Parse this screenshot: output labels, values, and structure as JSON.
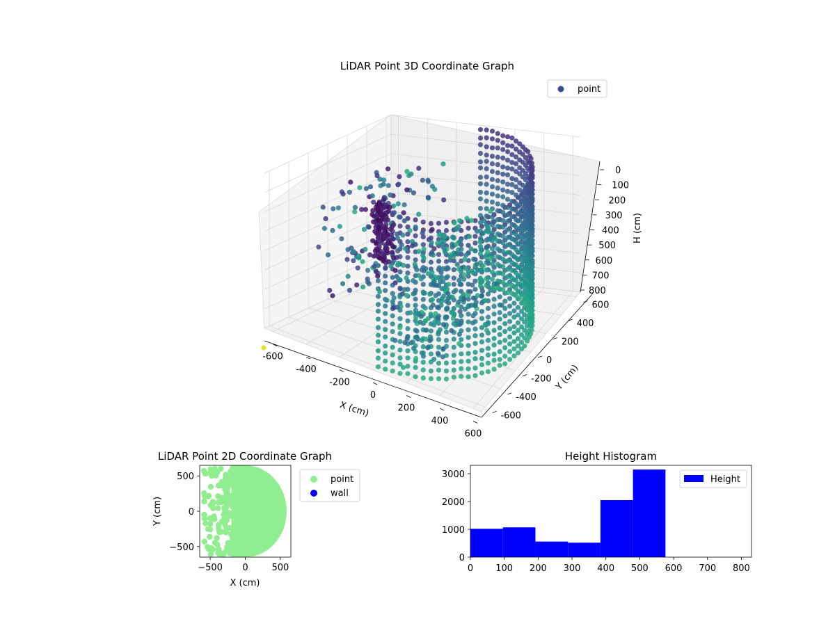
{
  "colors": {
    "legend_point_3d": "#3b4d8b",
    "point_2d": "#90ee90",
    "wall_2d": "#0000ff",
    "histogram_bar": "#0000ff",
    "colormap": "viridis"
  },
  "chart_data": [
    {
      "type": "scatter",
      "projection": "3d",
      "title": "LiDAR Point 3D Coordinate Graph",
      "xlabel": "X (cm)",
      "ylabel": "Y (cm)",
      "zlabel": "H (cm)",
      "xlim": [
        -650,
        650
      ],
      "ylim": [
        -650,
        650
      ],
      "zlim": [
        0,
        800
      ],
      "z_inverted": true,
      "x_ticks": [
        -600,
        -400,
        -200,
        0,
        200,
        400,
        600
      ],
      "y_ticks": [
        -600,
        -400,
        -200,
        0,
        200,
        400,
        600
      ],
      "z_ticks": [
        0,
        100,
        200,
        300,
        400,
        500,
        600,
        700,
        800
      ],
      "grid": true,
      "legend": {
        "entries": [
          "point"
        ],
        "placement": "top-right"
      },
      "series": [
        {
          "name": "point",
          "description": "half-ring of points radius ~600 cm, heights 0-800 cm, colored by viridis"
        }
      ]
    },
    {
      "type": "scatter",
      "title": "LiDAR Point 2D Coordinate Graph",
      "xlabel": "X (cm)",
      "ylabel": "Y (cm)",
      "xlim": [
        -650,
        650
      ],
      "ylim": [
        -650,
        650
      ],
      "x_ticks": [
        -500,
        0,
        500
      ],
      "y_ticks": [
        -500,
        0,
        500
      ],
      "legend": {
        "entries": [
          "point",
          "wall"
        ],
        "placement": "outside-right"
      },
      "series": [
        {
          "name": "point",
          "region": "half-disc x from about -600 to 580 cm, denser on right"
        },
        {
          "name": "wall",
          "values": []
        }
      ]
    },
    {
      "type": "bar",
      "title": "Height Histogram",
      "xlabel": "",
      "ylabel": "",
      "xlim": [
        0,
        830
      ],
      "ylim": [
        0,
        3300
      ],
      "x_ticks": [
        0,
        100,
        200,
        300,
        400,
        500,
        600,
        700,
        800
      ],
      "y_ticks": [
        0,
        1000,
        2000,
        3000
      ],
      "legend": {
        "entries": [
          "Height"
        ],
        "placement": "top-right"
      },
      "bins": [
        {
          "start": 0,
          "end": 96,
          "count": 1020
        },
        {
          "start": 96,
          "end": 192,
          "count": 1070
        },
        {
          "start": 192,
          "end": 288,
          "count": 560
        },
        {
          "start": 288,
          "end": 384,
          "count": 520
        },
        {
          "start": 384,
          "end": 480,
          "count": 2050
        },
        {
          "start": 480,
          "end": 576,
          "count": 3150
        }
      ]
    }
  ]
}
